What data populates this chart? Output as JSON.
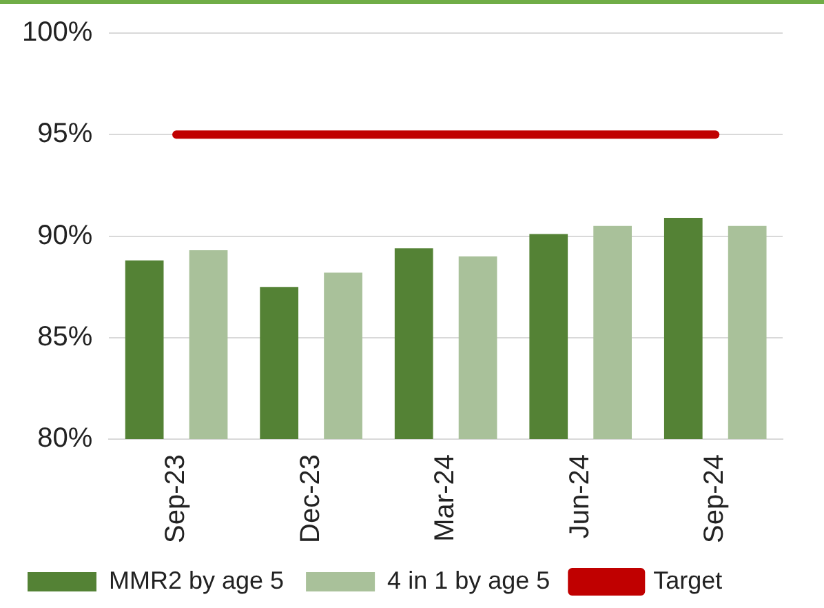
{
  "chart_data": {
    "type": "bar",
    "categories": [
      "Sep-23",
      "Dec-23",
      "Mar-24",
      "Jun-24",
      "Sep-24"
    ],
    "series": [
      {
        "name": "MMR2 by age 5",
        "color": "#548235",
        "values": [
          88.8,
          87.5,
          89.4,
          90.1,
          90.9
        ]
      },
      {
        "name": "4 in 1 by age 5",
        "color": "#a9c19a",
        "values": [
          89.3,
          88.2,
          89.0,
          90.5,
          90.5
        ]
      },
      {
        "name": "Target",
        "type": "line",
        "color": "#c00000",
        "values": [
          95,
          95,
          95,
          95,
          95
        ]
      }
    ],
    "ylim": [
      80,
      100
    ],
    "yticks": [
      {
        "value": 80,
        "label": "80%"
      },
      {
        "value": 85,
        "label": "85%"
      },
      {
        "value": 90,
        "label": "90%"
      },
      {
        "value": 95,
        "label": "95%"
      },
      {
        "value": 100,
        "label": "100%"
      }
    ],
    "grid": "y",
    "legend": "bottom",
    "marker": "none"
  }
}
